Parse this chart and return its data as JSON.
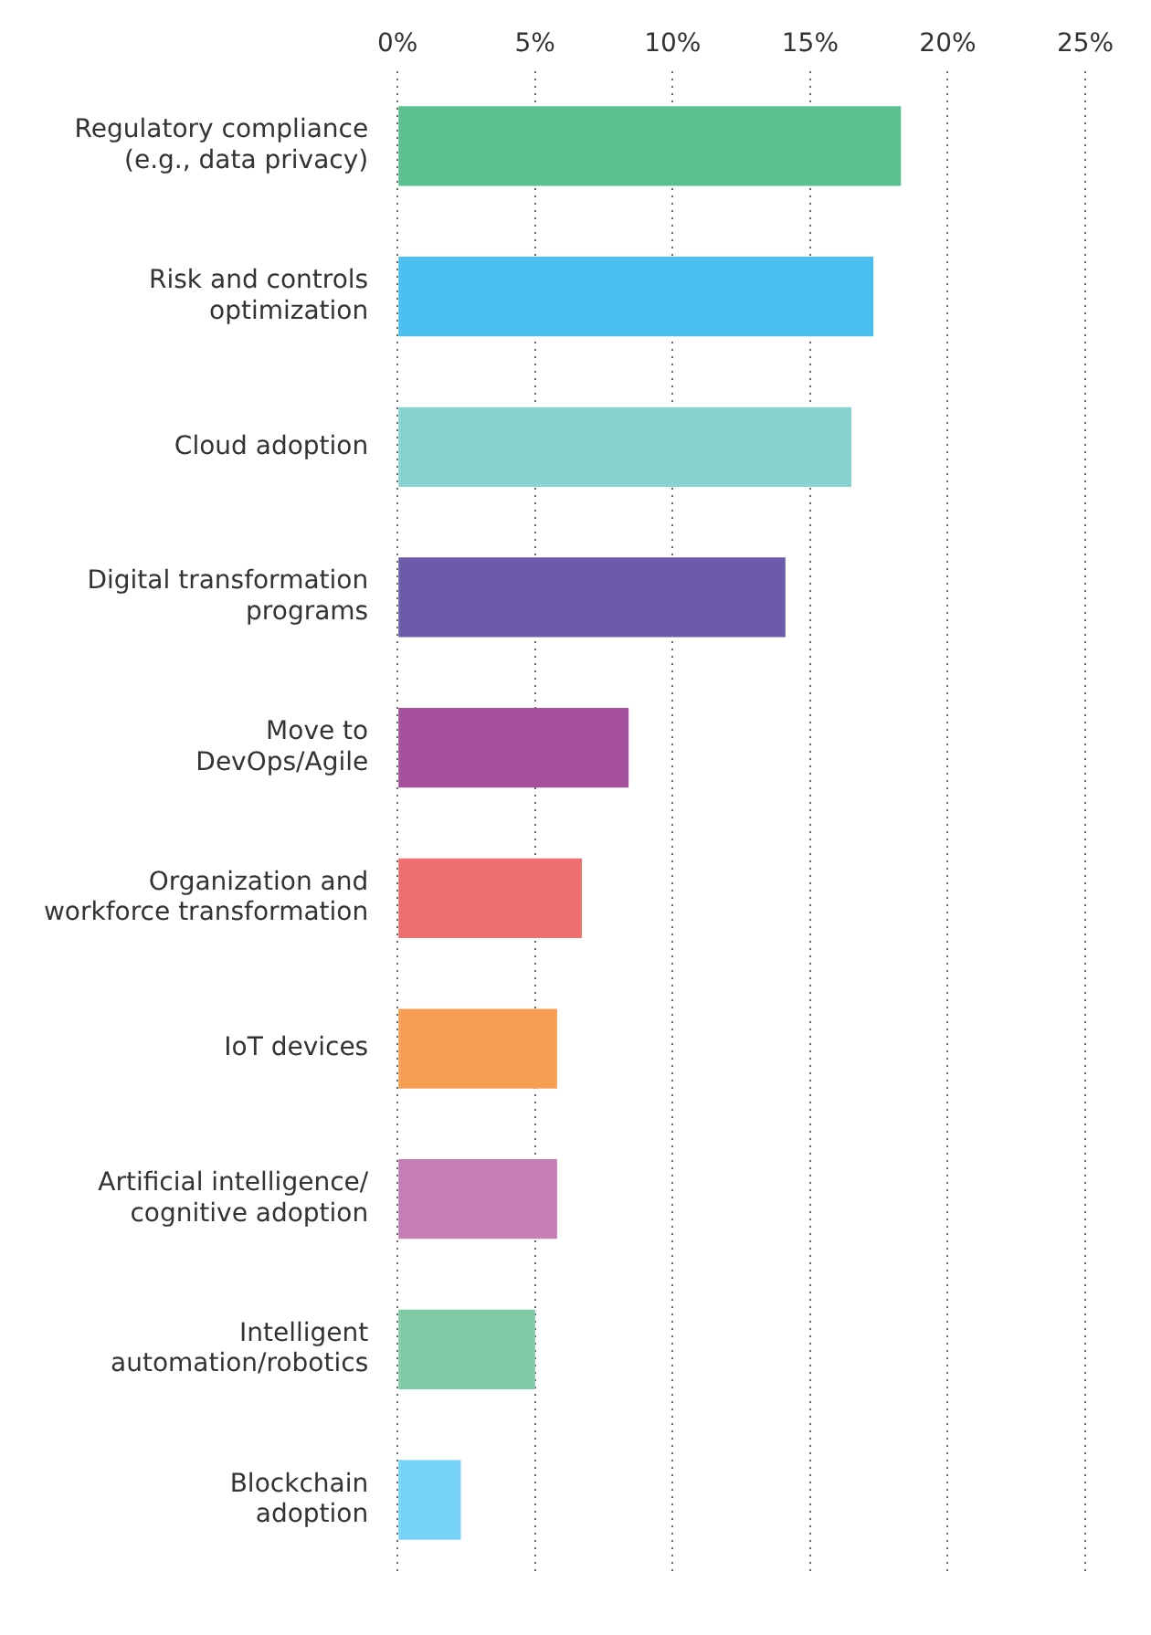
{
  "chart_data": {
    "type": "bar",
    "orientation": "horizontal",
    "categories": [
      "Regulatory compliance\n(e.g., data privacy)",
      "Risk and controls\noptimization",
      "Cloud adoption",
      "Digital transformation\nprograms",
      "Move to\nDevOps/Agile",
      "Organization and\nworkforce transformation",
      "IoT devices",
      "Artificial intelligence/\ncognitive adoption",
      "Intelligent\nautomation/robotics",
      "Blockchain\nadoption"
    ],
    "values": [
      18.3,
      17.3,
      16.5,
      14.1,
      8.4,
      6.7,
      5.8,
      5.8,
      5.0,
      2.3
    ],
    "colors": [
      "#5ac18e",
      "#4bc0f0",
      "#88d3d0",
      "#6b5ba8",
      "#a4509c",
      "#f07070",
      "#f89e52",
      "#c47db5",
      "#80cba6",
      "#76d3f7"
    ],
    "xlim": [
      0,
      25
    ],
    "xticks": [
      {
        "value": 0,
        "label": "0%"
      },
      {
        "value": 5,
        "label": "5%"
      },
      {
        "value": 10,
        "label": "10%"
      },
      {
        "value": 15,
        "label": "15%"
      },
      {
        "value": 20,
        "label": "20%"
      },
      {
        "value": 25,
        "label": "25%"
      }
    ],
    "grid": "x",
    "legend": false
  }
}
